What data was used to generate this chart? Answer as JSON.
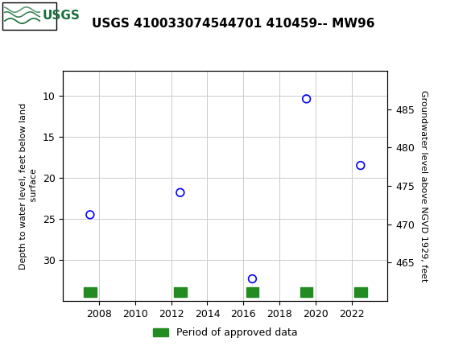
{
  "title": "USGS 410033074544701 410459-- MW96",
  "ylabel_left": "Depth to water level, feet below land\n surface",
  "ylabel_right": "Groundwater level above NGVD 1929, feet",
  "header_color": "#1a6e3c",
  "data_points": [
    {
      "year": 2007.5,
      "depth": 24.5
    },
    {
      "year": 2012.5,
      "depth": 21.8
    },
    {
      "year": 2016.5,
      "depth": 32.3
    },
    {
      "year": 2019.5,
      "depth": 10.4
    },
    {
      "year": 2022.5,
      "depth": 18.5
    }
  ],
  "green_bar_years": [
    2007.5,
    2012.5,
    2016.5,
    2019.5,
    2022.5
  ],
  "xlim": [
    2006,
    2024
  ],
  "xticks": [
    2008,
    2010,
    2012,
    2014,
    2016,
    2018,
    2020,
    2022
  ],
  "ylim_left": [
    35,
    7
  ],
  "ylim_right": [
    460,
    490
  ],
  "yticks_left": [
    10,
    15,
    20,
    25,
    30
  ],
  "yticks_right": [
    465,
    470,
    475,
    480,
    485
  ],
  "marker_color": "blue",
  "marker_size": 7,
  "legend_label": "Period of approved data",
  "legend_color": "#228B22",
  "background_color": "#ffffff",
  "grid_color": "#cccccc",
  "title_fontsize": 11,
  "tick_fontsize": 9,
  "ylabel_fontsize": 8
}
